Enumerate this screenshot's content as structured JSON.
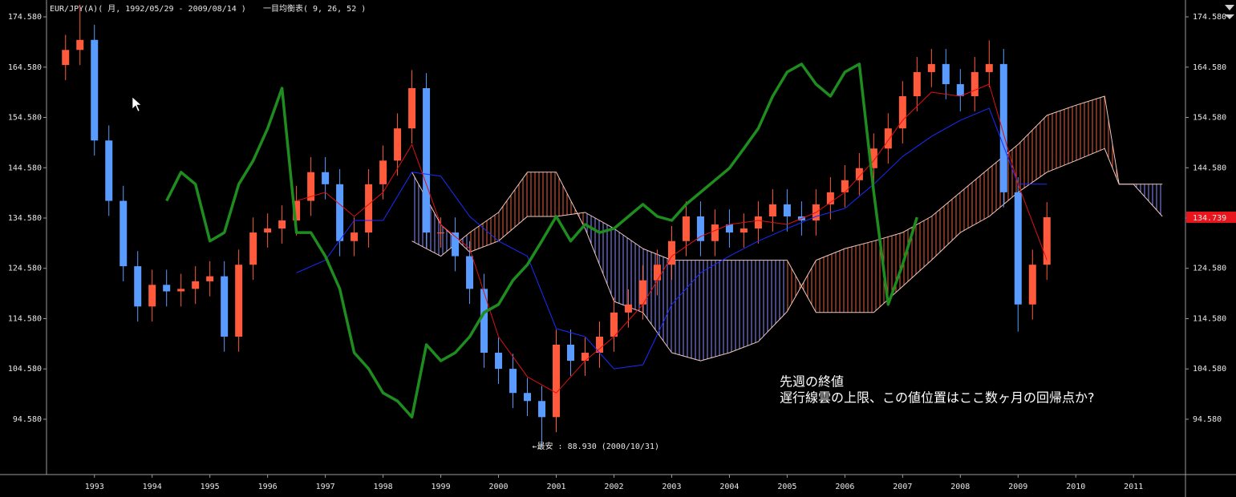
{
  "chart_data": {
    "type": "candlestick",
    "title": "EUR/JPY(A)( 月, 1992/05/29 - 2009/08/14 )",
    "indicator_title": "一目均衡表( 9, 26, 52 )",
    "x": [
      1992.5,
      1992.75,
      1993,
      1993.25,
      1993.5,
      1993.75,
      1994,
      1994.25,
      1994.5,
      1994.75,
      1995,
      1995.25,
      1995.5,
      1995.75,
      1996,
      1996.25,
      1996.5,
      1996.75,
      1997,
      1997.25,
      1997.5,
      1997.75,
      1998,
      1998.25,
      1998.5,
      1998.75,
      1999,
      1999.25,
      1999.5,
      1999.75,
      2000,
      2000.25,
      2000.5,
      2000.75,
      2001,
      2001.25,
      2001.5,
      2001.75,
      2002,
      2002.25,
      2002.5,
      2002.75,
      2003,
      2003.25,
      2003.5,
      2003.75,
      2004,
      2004.25,
      2004.5,
      2004.75,
      2005,
      2005.25,
      2005.5,
      2005.75,
      2006,
      2006.25,
      2006.5,
      2006.75,
      2007,
      2007.25,
      2007.5,
      2007.75,
      2008,
      2008.25,
      2008.5,
      2008.75,
      2009,
      2009.25,
      2009.5
    ],
    "open": [
      165,
      168,
      170,
      150,
      138,
      125,
      117,
      121.3,
      120,
      120.5,
      122,
      123,
      111,
      125.3,
      131.7,
      132.5,
      134.1,
      138,
      143.7,
      141.3,
      130,
      131.7,
      141.3,
      146,
      152.4,
      160.4,
      131.7,
      131.7,
      127,
      120.5,
      107.8,
      104.6,
      99.8,
      98.2,
      95,
      109.4,
      106.2,
      107.8,
      111,
      115.8,
      117.4,
      122.2,
      125.3,
      130,
      134.9,
      130,
      133.3,
      131.7,
      132.5,
      134.9,
      137.3,
      134.9,
      134.1,
      137.3,
      139.7,
      142.1,
      144.5,
      148.4,
      152.4,
      158.8,
      163.6,
      165.2,
      161.2,
      158.8,
      163.6,
      165.2,
      139.7,
      117.4,
      125.3
    ],
    "high": [
      171,
      177,
      173,
      153,
      141,
      128,
      124.3,
      124.3,
      123.5,
      125,
      126,
      126,
      128.3,
      134.7,
      135.5,
      137.1,
      141,
      146.7,
      146.7,
      144.3,
      134.7,
      144.3,
      149,
      155.4,
      164,
      163.4,
      134.7,
      134.7,
      130,
      123.5,
      110.8,
      107.6,
      102.8,
      101.2,
      112.4,
      112.4,
      110.8,
      114,
      118.8,
      120.4,
      125.2,
      128.3,
      133,
      137.9,
      137.9,
      136.3,
      136.3,
      135.5,
      137.9,
      140.3,
      140.3,
      137.9,
      140.3,
      142.7,
      145.1,
      147.5,
      151.4,
      155.4,
      161.8,
      166.6,
      168.2,
      168.2,
      164.2,
      166.6,
      169.9,
      168.2,
      142.7,
      128.3,
      137.74
    ],
    "low": [
      162,
      165,
      147,
      135,
      122,
      114,
      114,
      117,
      117,
      117.5,
      119,
      108,
      108,
      122.3,
      128.7,
      129.5,
      131.1,
      135,
      138.3,
      127,
      127,
      128.7,
      138.3,
      143,
      149.4,
      128.7,
      128.7,
      124,
      117.5,
      104.8,
      101.6,
      96.8,
      95.2,
      88.93,
      92,
      103.2,
      103.2,
      104.8,
      108,
      112.8,
      114.4,
      119.2,
      122.3,
      127,
      127,
      127,
      128.7,
      128.7,
      129.5,
      131.9,
      131.9,
      131.1,
      131.1,
      134.3,
      136.7,
      139.1,
      141.5,
      145.4,
      149.4,
      155.8,
      160.6,
      158.2,
      155.8,
      155.8,
      160.6,
      136.7,
      112,
      114.4,
      122.3
    ],
    "close": [
      168,
      170,
      150,
      138,
      125,
      117,
      121.3,
      120,
      120.5,
      122,
      123,
      111,
      125.3,
      131.7,
      132.5,
      134.1,
      138,
      143.7,
      141.3,
      130,
      131.7,
      141.3,
      146,
      152.4,
      160.4,
      131.7,
      131.7,
      127,
      120.5,
      107.8,
      104.6,
      99.8,
      98.2,
      95,
      109.4,
      106.2,
      107.8,
      111,
      115.8,
      117.4,
      122.2,
      125.3,
      130,
      134.9,
      130,
      133.3,
      131.7,
      132.5,
      134.9,
      137.3,
      134.9,
      134.1,
      137.3,
      139.7,
      142.1,
      144.5,
      148.4,
      152.4,
      158.8,
      163.6,
      165.2,
      161.2,
      158.8,
      163.6,
      165.2,
      139.7,
      117.4,
      125.3,
      134.739
    ],
    "up_color": "#ff5a3c",
    "down_color": "#5a9bff",
    "tenkan": {
      "color": "#e01010",
      "x": [
        1996.5,
        1997,
        1997.5,
        1998,
        1998.5,
        1999,
        1999.5,
        2000,
        2000.5,
        2001,
        2001.5,
        2002,
        2002.5,
        2003,
        2003.5,
        2004,
        2004.5,
        2005,
        2005.5,
        2006,
        2006.5,
        2007,
        2007.5,
        2008,
        2008.5,
        2009,
        2009.5
      ],
      "values": [
        138,
        139.7,
        134.9,
        139.7,
        149.2,
        133.3,
        128.5,
        111,
        103,
        99.8,
        106.2,
        111,
        117.4,
        127,
        130.9,
        133.3,
        134.1,
        133.3,
        135.7,
        139.7,
        146,
        154,
        159.6,
        158.8,
        161.2,
        141.3,
        126.2
      ]
    },
    "kijun": {
      "color": "#1a2cff",
      "x": [
        1996.5,
        1997,
        1997.5,
        1998,
        1998.5,
        1999,
        1999.5,
        2000,
        2000.5,
        2001,
        2001.5,
        2002,
        2002.5,
        2003,
        2003.5,
        2004,
        2004.5,
        2005,
        2005.5,
        2006,
        2006.5,
        2007,
        2007.5,
        2008,
        2008.5,
        2009,
        2009.5
      ],
      "values": [
        123.7,
        126.2,
        134.1,
        134.1,
        143.7,
        142.9,
        134.9,
        130,
        127,
        112.6,
        111,
        104.6,
        105.4,
        117.4,
        123.7,
        127,
        130,
        132.5,
        134.9,
        136.5,
        141.3,
        146.8,
        150.8,
        154,
        156.4,
        141.3,
        141.3
      ]
    },
    "chikou": {
      "color": "#1e8c1e",
      "x": [
        1994.25,
        1994.5,
        1994.75,
        1995,
        1995.25,
        1995.5,
        1995.75,
        1996,
        1996.25,
        1996.5,
        1996.75,
        1997,
        1997.25,
        1997.5,
        1997.75,
        1998,
        1998.25,
        1998.5,
        1998.75,
        1999,
        1999.25,
        1999.5,
        1999.75,
        2000,
        2000.25,
        2000.5,
        2000.75,
        2001,
        2001.25,
        2001.5,
        2001.75,
        2002,
        2002.25,
        2002.5,
        2002.75,
        2003,
        2003.25,
        2003.5,
        2003.75,
        2004,
        2004.25,
        2004.5,
        2004.75,
        2005,
        2005.25,
        2005.5,
        2005.75,
        2006,
        2006.25,
        2006.5,
        2006.75,
        2007,
        2007.25
      ],
      "values": [
        138,
        143.7,
        141.3,
        130,
        131.7,
        141.3,
        146,
        152.4,
        160.4,
        131.7,
        131.7,
        127,
        120.5,
        107.8,
        104.6,
        99.8,
        98.2,
        95,
        109.4,
        106.2,
        107.8,
        111,
        115.8,
        117.4,
        122.2,
        125.3,
        130,
        134.9,
        130,
        133.3,
        131.7,
        132.5,
        134.9,
        137.3,
        134.9,
        134.1,
        137.3,
        139.7,
        142.1,
        144.5,
        148.4,
        152.4,
        158.8,
        163.6,
        165.2,
        161.2,
        158.8,
        163.6,
        165.2,
        139.7,
        117.4,
        125.3,
        134.739
      ]
    },
    "cloud": {
      "up_color": "#e8603c",
      "down_color": "#8c8cff",
      "line_color": "#f0c8c0",
      "x": [
        1998.5,
        1999,
        1999.5,
        2000,
        2000.5,
        2001,
        2001.5,
        2002,
        2002.5,
        2003,
        2003.5,
        2004,
        2004.5,
        2005,
        2005.5,
        2006,
        2006.5,
        2007,
        2007.5,
        2008,
        2008.5,
        2009,
        2009.5,
        2010,
        2010.5,
        2010.75,
        2011,
        2011.5
      ],
      "span_a": [
        130,
        127,
        131.7,
        135.7,
        143.7,
        143.7,
        132.5,
        118,
        115.8,
        107.8,
        106.2,
        107.8,
        110,
        116,
        126.2,
        128.5,
        130,
        131.7,
        134.9,
        139.7,
        144.5,
        149.2,
        155,
        157,
        158.8,
        141.3,
        141.3,
        134.9
      ],
      "span_b": [
        143.7,
        133.3,
        127.8,
        130,
        134.9,
        134.9,
        135.7,
        132.5,
        128.5,
        126.2,
        126.2,
        126.2,
        126.2,
        126.2,
        115.8,
        115.8,
        115.8,
        121,
        126.2,
        131.7,
        134.9,
        139.7,
        143.7,
        146,
        148.4,
        141.3,
        141.3,
        141.3
      ]
    },
    "last_price": 134.739,
    "price_tag_color": "#e8161c",
    "annotations": [
      {
        "text": "←最安 : 88.930 (2000/10/31)"
      },
      {
        "text": "先週の終値"
      },
      {
        "text": "遅行線雲の上限、この値位置はここ数ヶ月の回帰点か?"
      }
    ],
    "xlim": [
      1992.17,
      2011.9
    ],
    "ylim": [
      83.58,
      177.93
    ],
    "xticks": [
      1993,
      1994,
      1995,
      1996,
      1997,
      1998,
      1999,
      2000,
      2001,
      2002,
      2003,
      2004,
      2005,
      2006,
      2007,
      2008,
      2009,
      2010,
      2011
    ],
    "yticks": [
      {
        "value": 94.58,
        "label": "94.580"
      },
      {
        "value": 104.58,
        "label": "104.580"
      },
      {
        "value": 114.58,
        "label": "114.580"
      },
      {
        "value": 124.58,
        "label": "124.580"
      },
      {
        "value": 134.58,
        "label": "134.580"
      },
      {
        "value": 144.58,
        "label": "144.580"
      },
      {
        "value": 154.58,
        "label": "154.580"
      },
      {
        "value": 164.58,
        "label": "164.580"
      },
      {
        "value": 174.58,
        "label": "174.580"
      }
    ]
  }
}
